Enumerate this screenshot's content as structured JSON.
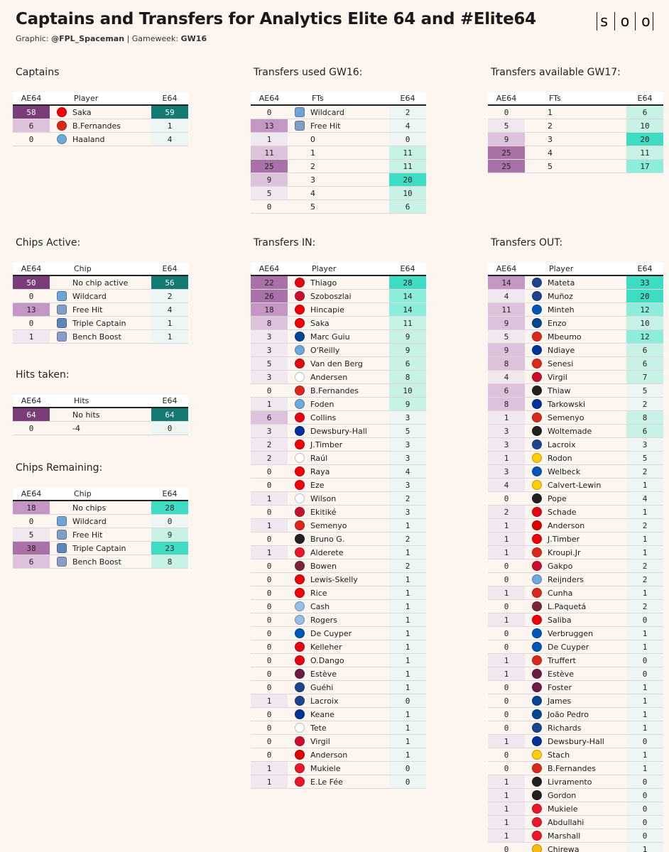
{
  "header": {
    "title": "Captains and Transfers for Analytics Elite 64 and #Elite64",
    "graphic_label": "Graphic:",
    "graphic_value": "@FPL_Spaceman",
    "gameweek_label": "Gameweek:",
    "gameweek_value": "GW16",
    "logo": "solio"
  },
  "colors": {
    "purple_scale": [
      "#f1e7ef",
      "#dcc2db",
      "#c396c3",
      "#a871a7",
      "#7a3d7a"
    ],
    "teal_scale": [
      "#eef6f3",
      "#c9f2e7",
      "#8ceddb",
      "#3fdcc4",
      "#127a71"
    ],
    "club": {
      "ARS": "#ef0107",
      "MUN": "#da291c",
      "MCI": "#6cabdd",
      "BRE": "#e30613",
      "LIV": "#c8102e",
      "CHE": "#034694",
      "FUL": "#ffffff",
      "EVE": "#003399",
      "NEW": "#241f20",
      "SUN": "#eb172b",
      "WHU": "#7a263a",
      "AVL": "#95bfe5",
      "BHA": "#0057b8",
      "CRY": "#1b458f",
      "BUR": "#6c1d45",
      "NFO": "#dd0000",
      "BOU": "#da291c",
      "LEE": "#ffcd00",
      "WOL": "#fdb913",
      "TOT": "#132257",
      "CHIP_WC": "#6fa3d6",
      "CHIP_FH": "#7f9fc4",
      "CHIP_TC": "#5f86b8",
      "CHIP_BB": "#8a9cc4"
    }
  },
  "chart_data": [
    {
      "type": "table",
      "id": "captains",
      "title": "Captains",
      "columns": [
        "AE64",
        "Player",
        "E64"
      ],
      "rows": [
        {
          "ae": 58,
          "label": "Saka",
          "icon": "ARS",
          "e": 59
        },
        {
          "ae": 6,
          "label": "B.Fernandes",
          "icon": "MUN",
          "e": 1
        },
        {
          "ae": 0,
          "label": "Haaland",
          "icon": "MCI",
          "e": 4
        }
      ]
    },
    {
      "type": "table",
      "id": "transfers_used",
      "title": "Transfers used GW16:",
      "columns": [
        "AE64",
        "FTs",
        "E64"
      ],
      "rows": [
        {
          "ae": 0,
          "label": "Wildcard",
          "icon": "CHIP_WC",
          "e": 2
        },
        {
          "ae": 13,
          "label": "Free Hit",
          "icon": "CHIP_FH",
          "e": 4
        },
        {
          "ae": 1,
          "label": "0",
          "e": 0
        },
        {
          "ae": 11,
          "label": "1",
          "e": 11
        },
        {
          "ae": 25,
          "label": "2",
          "e": 11
        },
        {
          "ae": 9,
          "label": "3",
          "e": 20
        },
        {
          "ae": 5,
          "label": "4",
          "e": 10
        },
        {
          "ae": 0,
          "label": "5",
          "e": 6
        }
      ]
    },
    {
      "type": "table",
      "id": "transfers_available",
      "title": "Transfers available GW17:",
      "columns": [
        "AE64",
        "FTs",
        "E64"
      ],
      "rows": [
        {
          "ae": 0,
          "label": "1",
          "e": 6
        },
        {
          "ae": 5,
          "label": "2",
          "e": 10
        },
        {
          "ae": 9,
          "label": "3",
          "e": 20
        },
        {
          "ae": 25,
          "label": "4",
          "e": 11
        },
        {
          "ae": 25,
          "label": "5",
          "e": 17
        }
      ]
    },
    {
      "type": "table",
      "id": "chips_active",
      "title": "Chips Active:",
      "columns": [
        "AE64",
        "Chip",
        "E64"
      ],
      "rows": [
        {
          "ae": 50,
          "label": "No chip active",
          "e": 56
        },
        {
          "ae": 0,
          "label": "Wildcard",
          "icon": "CHIP_WC",
          "e": 2
        },
        {
          "ae": 13,
          "label": "Free Hit",
          "icon": "CHIP_FH",
          "e": 4
        },
        {
          "ae": 0,
          "label": "Triple Captain",
          "icon": "CHIP_TC",
          "e": 1
        },
        {
          "ae": 1,
          "label": "Bench Boost",
          "icon": "CHIP_BB",
          "e": 1
        }
      ]
    },
    {
      "type": "table",
      "id": "hits_taken",
      "title": "Hits taken:",
      "columns": [
        "AE64",
        "Hits",
        "E64"
      ],
      "rows": [
        {
          "ae": 64,
          "label": "No hits",
          "e": 64
        },
        {
          "ae": 0,
          "label": "-4",
          "e": 0
        }
      ]
    },
    {
      "type": "table",
      "id": "chips_remaining",
      "title": "Chips Remaining:",
      "columns": [
        "AE64",
        "Chip",
        "E64"
      ],
      "rows": [
        {
          "ae": 18,
          "label": "No chips",
          "e": 28
        },
        {
          "ae": 0,
          "label": "Wildcard",
          "icon": "CHIP_WC",
          "e": 0
        },
        {
          "ae": 5,
          "label": "Free Hit",
          "icon": "CHIP_FH",
          "e": 9
        },
        {
          "ae": 38,
          "label": "Triple Captain",
          "icon": "CHIP_TC",
          "e": 23
        },
        {
          "ae": 6,
          "label": "Bench Boost",
          "icon": "CHIP_BB",
          "e": 8
        }
      ]
    },
    {
      "type": "table",
      "id": "transfers_in",
      "title": "Transfers IN:",
      "columns": [
        "AE64",
        "Player",
        "E64"
      ],
      "rows": [
        {
          "ae": 22,
          "label": "Thiago",
          "icon": "BRE",
          "e": 28
        },
        {
          "ae": 26,
          "label": "Szoboszlai",
          "icon": "LIV",
          "e": 14
        },
        {
          "ae": 18,
          "label": "Hincapie",
          "icon": "ARS",
          "e": 14
        },
        {
          "ae": 8,
          "label": "Saka",
          "icon": "ARS",
          "e": 11
        },
        {
          "ae": 3,
          "label": "Marc Guiu",
          "icon": "CHE",
          "e": 9
        },
        {
          "ae": 3,
          "label": "O'Reilly",
          "icon": "MCI",
          "e": 9
        },
        {
          "ae": 5,
          "label": "Van den Berg",
          "icon": "BRE",
          "e": 6
        },
        {
          "ae": 3,
          "label": "Andersen",
          "icon": "FUL",
          "e": 8
        },
        {
          "ae": 0,
          "label": "B.Fernandes",
          "icon": "MUN",
          "e": 10
        },
        {
          "ae": 1,
          "label": "Foden",
          "icon": "MCI",
          "e": 9
        },
        {
          "ae": 6,
          "label": "Collins",
          "icon": "BRE",
          "e": 3
        },
        {
          "ae": 3,
          "label": "Dewsbury-Hall",
          "icon": "EVE",
          "e": 5
        },
        {
          "ae": 2,
          "label": "J.Timber",
          "icon": "ARS",
          "e": 3
        },
        {
          "ae": 2,
          "label": "Raúl",
          "icon": "FUL",
          "e": 3
        },
        {
          "ae": 0,
          "label": "Raya",
          "icon": "ARS",
          "e": 4
        },
        {
          "ae": 0,
          "label": "Eze",
          "icon": "ARS",
          "e": 3
        },
        {
          "ae": 1,
          "label": "Wilson",
          "icon": "FUL",
          "e": 2
        },
        {
          "ae": 0,
          "label": "Ekitiké",
          "icon": "LIV",
          "e": 3
        },
        {
          "ae": 1,
          "label": "Semenyo",
          "icon": "BOU",
          "e": 1
        },
        {
          "ae": 0,
          "label": "Bruno G.",
          "icon": "NEW",
          "e": 2
        },
        {
          "ae": 1,
          "label": "Alderete",
          "icon": "SUN",
          "e": 1
        },
        {
          "ae": 0,
          "label": "Bowen",
          "icon": "WHU",
          "e": 2
        },
        {
          "ae": 0,
          "label": "Lewis-Skelly",
          "icon": "ARS",
          "e": 1
        },
        {
          "ae": 0,
          "label": "Rice",
          "icon": "ARS",
          "e": 1
        },
        {
          "ae": 0,
          "label": "Cash",
          "icon": "AVL",
          "e": 1
        },
        {
          "ae": 0,
          "label": "Rogers",
          "icon": "AVL",
          "e": 1
        },
        {
          "ae": 0,
          "label": "De Cuyper",
          "icon": "BHA",
          "e": 1
        },
        {
          "ae": 0,
          "label": "Kelleher",
          "icon": "BRE",
          "e": 1
        },
        {
          "ae": 0,
          "label": "O.Dango",
          "icon": "BRE",
          "e": 1
        },
        {
          "ae": 0,
          "label": "Estève",
          "icon": "BUR",
          "e": 1
        },
        {
          "ae": 0,
          "label": "Guéhi",
          "icon": "CRY",
          "e": 1
        },
        {
          "ae": 1,
          "label": "Lacroix",
          "icon": "CRY",
          "e": 0
        },
        {
          "ae": 0,
          "label": "Keane",
          "icon": "EVE",
          "e": 1
        },
        {
          "ae": 0,
          "label": "Tete",
          "icon": "FUL",
          "e": 1
        },
        {
          "ae": 0,
          "label": "Virgil",
          "icon": "LIV",
          "e": 1
        },
        {
          "ae": 0,
          "label": "Anderson",
          "icon": "NFO",
          "e": 1
        },
        {
          "ae": 1,
          "label": "Mukiele",
          "icon": "SUN",
          "e": 0
        },
        {
          "ae": 1,
          "label": "E.Le Fée",
          "icon": "SUN",
          "e": 0
        }
      ]
    },
    {
      "type": "table",
      "id": "transfers_out",
      "title": "Transfers OUT:",
      "columns": [
        "AE64",
        "Player",
        "E64"
      ],
      "rows": [
        {
          "ae": 14,
          "label": "Mateta",
          "icon": "CRY",
          "e": 33
        },
        {
          "ae": 4,
          "label": "Muñoz",
          "icon": "CRY",
          "e": 20
        },
        {
          "ae": 11,
          "label": "Minteh",
          "icon": "BHA",
          "e": 12
        },
        {
          "ae": 9,
          "label": "Enzo",
          "icon": "CHE",
          "e": 10
        },
        {
          "ae": 5,
          "label": "Mbeumo",
          "icon": "MUN",
          "e": 12
        },
        {
          "ae": 9,
          "label": "Ndiaye",
          "icon": "EVE",
          "e": 6
        },
        {
          "ae": 8,
          "label": "Senesi",
          "icon": "BOU",
          "e": 6
        },
        {
          "ae": 4,
          "label": "Virgil",
          "icon": "LIV",
          "e": 7
        },
        {
          "ae": 6,
          "label": "Thiaw",
          "icon": "NEW",
          "e": 5
        },
        {
          "ae": 8,
          "label": "Tarkowski",
          "icon": "EVE",
          "e": 2
        },
        {
          "ae": 1,
          "label": "Semenyo",
          "icon": "BOU",
          "e": 8
        },
        {
          "ae": 3,
          "label": "Woltemade",
          "icon": "NEW",
          "e": 6
        },
        {
          "ae": 3,
          "label": "Lacroix",
          "icon": "CRY",
          "e": 3
        },
        {
          "ae": 1,
          "label": "Rodon",
          "icon": "LEE",
          "e": 5
        },
        {
          "ae": 3,
          "label": "Welbeck",
          "icon": "BHA",
          "e": 2
        },
        {
          "ae": 4,
          "label": "Calvert-Lewin",
          "icon": "LEE",
          "e": 1
        },
        {
          "ae": 0,
          "label": "Pope",
          "icon": "NEW",
          "e": 4
        },
        {
          "ae": 2,
          "label": "Schade",
          "icon": "BRE",
          "e": 1
        },
        {
          "ae": 1,
          "label": "Anderson",
          "icon": "NFO",
          "e": 2
        },
        {
          "ae": 1,
          "label": "J.Timber",
          "icon": "ARS",
          "e": 1
        },
        {
          "ae": 1,
          "label": "Kroupi.Jr",
          "icon": "BOU",
          "e": 1
        },
        {
          "ae": 0,
          "label": "Gakpo",
          "icon": "LIV",
          "e": 2
        },
        {
          "ae": 0,
          "label": "Reijnders",
          "icon": "MCI",
          "e": 2
        },
        {
          "ae": 1,
          "label": "Cunha",
          "icon": "MUN",
          "e": 1
        },
        {
          "ae": 0,
          "label": "L.Paquetá",
          "icon": "WHU",
          "e": 2
        },
        {
          "ae": 1,
          "label": "Saliba",
          "icon": "ARS",
          "e": 0
        },
        {
          "ae": 0,
          "label": "Verbruggen",
          "icon": "BHA",
          "e": 1
        },
        {
          "ae": 0,
          "label": "De Cuyper",
          "icon": "BHA",
          "e": 1
        },
        {
          "ae": 1,
          "label": "Truffert",
          "icon": "BOU",
          "e": 0
        },
        {
          "ae": 1,
          "label": "Estève",
          "icon": "BUR",
          "e": 0
        },
        {
          "ae": 0,
          "label": "Foster",
          "icon": "BUR",
          "e": 1
        },
        {
          "ae": 0,
          "label": "James",
          "icon": "CHE",
          "e": 1
        },
        {
          "ae": 0,
          "label": "João Pedro",
          "icon": "CHE",
          "e": 1
        },
        {
          "ae": 0,
          "label": "Richards",
          "icon": "CRY",
          "e": 1
        },
        {
          "ae": 1,
          "label": "Dewsbury-Hall",
          "icon": "EVE",
          "e": 0
        },
        {
          "ae": 0,
          "label": "Stach",
          "icon": "LEE",
          "e": 1
        },
        {
          "ae": 0,
          "label": "B.Fernandes",
          "icon": "MUN",
          "e": 1
        },
        {
          "ae": 1,
          "label": "Livramento",
          "icon": "NEW",
          "e": 0
        },
        {
          "ae": 1,
          "label": "Gordon",
          "icon": "NEW",
          "e": 0
        },
        {
          "ae": 1,
          "label": "Mukiele",
          "icon": "SUN",
          "e": 0
        },
        {
          "ae": 1,
          "label": "Abdullahi",
          "icon": "SUN",
          "e": 0
        },
        {
          "ae": 1,
          "label": "Marshall",
          "icon": "SUN",
          "e": 0
        },
        {
          "ae": 0,
          "label": "Chirewa",
          "icon": "WOL",
          "e": 1
        }
      ]
    }
  ]
}
